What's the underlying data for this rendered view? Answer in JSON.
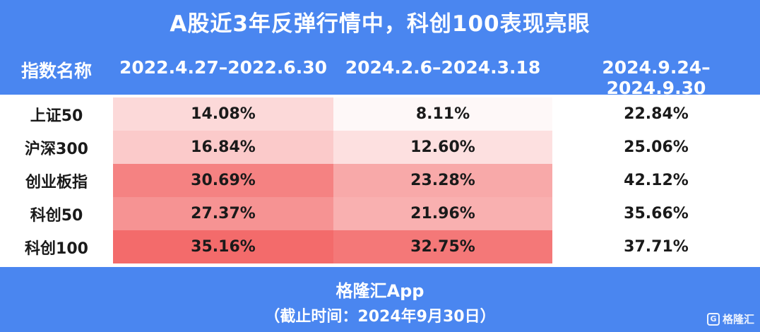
{
  "title": "A股近3年反弹行情中，科创100表现亮眼",
  "footer": {
    "source": "格隆汇App",
    "note": "（截止时间：2024年9月30日）",
    "watermark": "格隆汇",
    "watermark_logo": "G"
  },
  "colors": {
    "header_bg": "#4a86f0",
    "heat_low": "#ffffff",
    "heat_high": "#f36b6b"
  },
  "chart_data": {
    "type": "table",
    "columns": [
      "指数名称",
      "2022.4.27–2022.6.30",
      "2024.2.6–2024.3.18",
      "2024.9.24–2024.9.30"
    ],
    "rows": [
      {
        "name": "上证50",
        "values": [
          "14.08%",
          "8.11%",
          "22.84%"
        ],
        "numeric": [
          14.08,
          8.11,
          22.84
        ]
      },
      {
        "name": "沪深300",
        "values": [
          "16.84%",
          "12.60%",
          "25.06%"
        ],
        "numeric": [
          16.84,
          12.6,
          25.06
        ]
      },
      {
        "name": "创业板指",
        "values": [
          "30.69%",
          "23.28%",
          "42.12%"
        ],
        "numeric": [
          30.69,
          23.28,
          42.12
        ]
      },
      {
        "name": "科创50",
        "values": [
          "27.37%",
          "21.96%",
          "35.66%"
        ],
        "numeric": [
          27.37,
          21.96,
          35.66
        ]
      },
      {
        "name": "科创100",
        "values": [
          "35.16%",
          "32.75%",
          "37.71%"
        ],
        "numeric": [
          35.16,
          32.75,
          37.71
        ]
      }
    ],
    "heatmap_columns": [
      0,
      1
    ]
  }
}
